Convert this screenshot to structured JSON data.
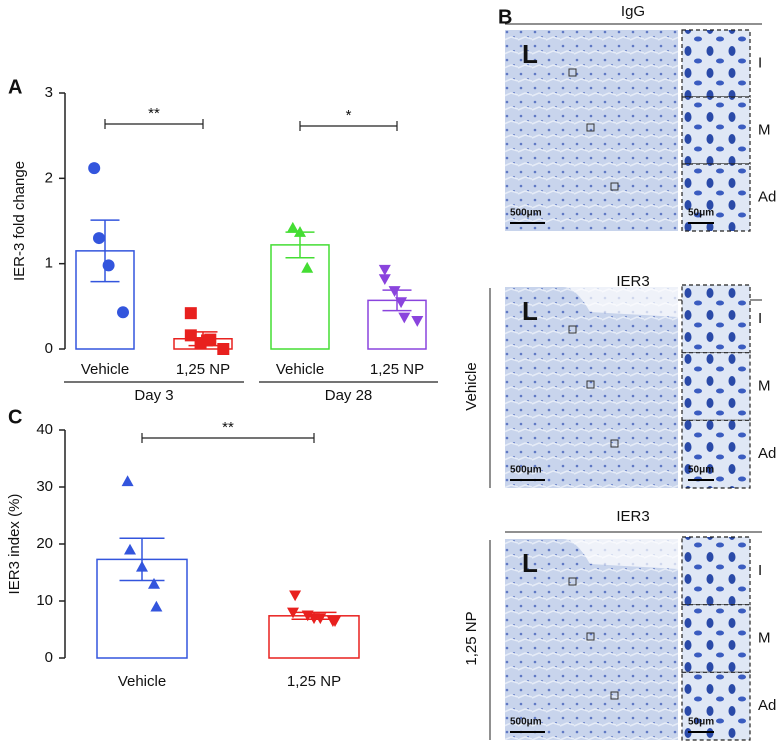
{
  "chart_data": [
    {
      "type": "bar",
      "panel": "A",
      "ylabel": "IER-3 fold change",
      "categories": [
        "Vehicle",
        "1,25 NP",
        "Vehicle",
        "1,25 NP"
      ],
      "group_labels": [
        "Day 3",
        "Day 28"
      ],
      "bars": [
        {
          "color": "#3355dd",
          "marker": "circle",
          "mean": 1.15,
          "sem": 0.36,
          "points": [
            2.12,
            1.3,
            0.98,
            0.43
          ]
        },
        {
          "color": "#e8201e",
          "marker": "square",
          "mean": 0.12,
          "sem": 0.08,
          "points": [
            0.42,
            0.16,
            0.07,
            0.1,
            0.11,
            0
          ]
        },
        {
          "color": "#44dd33",
          "marker": "triangle",
          "mean": 1.22,
          "sem": 0.15,
          "points": [
            1.42,
            1.37,
            0.95
          ]
        },
        {
          "color": "#8a44dd",
          "marker": "triangle-down",
          "mean": 0.57,
          "sem": 0.12,
          "points": [
            0.93,
            0.82,
            0.68,
            0.55,
            0.37,
            0.33
          ]
        }
      ],
      "annotations": [
        "**",
        "*"
      ],
      "ylim": [
        0,
        3
      ],
      "yticks": [
        0,
        1,
        2,
        3
      ]
    },
    {
      "type": "bar",
      "panel": "C",
      "ylabel": "IER3 index (%)",
      "categories": [
        "Vehicle",
        "1,25 NP"
      ],
      "bars": [
        {
          "color": "#3355dd",
          "marker": "triangle",
          "mean": 17.3,
          "sem": 3.7,
          "points": [
            31,
            19,
            16,
            13,
            9
          ]
        },
        {
          "color": "#e8201e",
          "marker": "triangle-down",
          "mean": 7.4,
          "sem": 0.6,
          "points": [
            11,
            8,
            7.5,
            7,
            7,
            6.5,
            6.5
          ]
        }
      ],
      "annotations": [
        "**"
      ],
      "ylim": [
        0,
        40
      ],
      "yticks": [
        0,
        10,
        20,
        30,
        40
      ]
    }
  ],
  "panel_b": {
    "label": "B",
    "blocks": [
      {
        "title": "IgG",
        "lumen": "L",
        "scale": "500μm",
        "inset_scale": "50μm",
        "regions": [
          "I",
          "M",
          "Ad"
        ]
      },
      {
        "title": "IER3",
        "group": "Vehicle",
        "lumen": "L",
        "scale": "500μm",
        "inset_scale": "50μm",
        "regions": [
          "I",
          "M",
          "Ad"
        ]
      },
      {
        "title": "IER3",
        "group": "1,25 NP",
        "lumen": "L",
        "scale": "500μm",
        "inset_scale": "50μm",
        "regions": [
          "I",
          "M",
          "Ad"
        ]
      }
    ]
  }
}
